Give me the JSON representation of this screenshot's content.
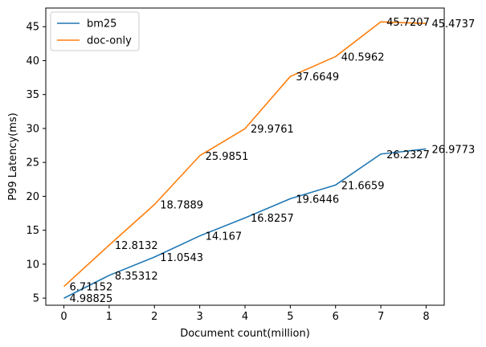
{
  "chart_data": {
    "type": "line",
    "title": "",
    "xlabel": "Document count(million)",
    "ylabel": "P99 Latency(ms)",
    "x": [
      0,
      1,
      2,
      3,
      4,
      5,
      6,
      7,
      8
    ],
    "xlim": [
      -0.4,
      8.4
    ],
    "ylim": [
      3.95,
      47.75
    ],
    "xticks": [
      "0",
      "1",
      "2",
      "3",
      "4",
      "5",
      "6",
      "7",
      "8"
    ],
    "yticks": [
      "5",
      "10",
      "15",
      "20",
      "25",
      "30",
      "35",
      "40",
      "45"
    ],
    "legend_position": "top-left",
    "grid": false,
    "series": [
      {
        "name": "bm25",
        "color": "#1f77b4",
        "values": [
          4.98825,
          8.35312,
          11.0543,
          14.167,
          16.8257,
          19.6446,
          21.6659,
          26.2327,
          26.9773
        ],
        "labels": [
          "4.98825",
          "8.35312",
          "11.0543",
          "14.167",
          "16.8257",
          "19.6446",
          "21.6659",
          "26.2327",
          "26.9773"
        ]
      },
      {
        "name": "doc-only",
        "color": "#ff7f0e",
        "values": [
          6.71152,
          12.8132,
          18.7889,
          25.9851,
          29.9761,
          37.6649,
          40.5962,
          45.7207,
          45.4737
        ],
        "labels": [
          "6.71152",
          "12.8132",
          "18.7889",
          "25.9851",
          "29.9761",
          "37.6649",
          "40.5962",
          "45.7207",
          "45.4737"
        ]
      }
    ]
  }
}
